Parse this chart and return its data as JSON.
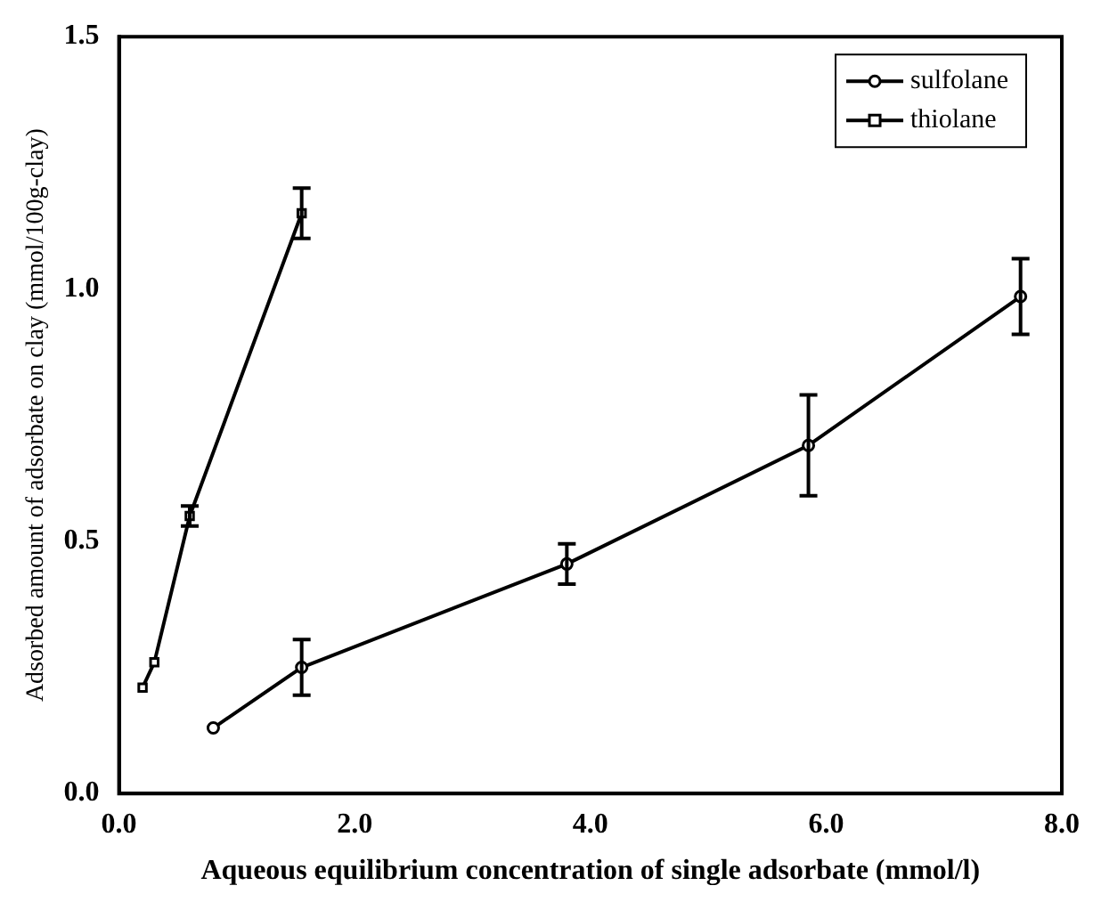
{
  "chart_data": {
    "type": "line",
    "xlabel": "Aqueous equilibrium concentration of single adsorbate (mmol/l)",
    "ylabel": "Adsorbed amount of adsorbate on clay (mmol/100g-clay)",
    "xlim": [
      0,
      8
    ],
    "xticks": [
      {
        "value": 0,
        "label": "0.0"
      },
      {
        "value": 2,
        "label": "2.0"
      },
      {
        "value": 4,
        "label": "4.0"
      },
      {
        "value": 6,
        "label": "6.0"
      },
      {
        "value": 8,
        "label": "8.0"
      }
    ],
    "ylim": [
      0,
      1.5
    ],
    "yticks": [
      {
        "value": 0,
        "label": "0.0"
      },
      {
        "value": 0.5,
        "label": "0.5"
      },
      {
        "value": 1,
        "label": "1.0"
      },
      {
        "value": 1.5,
        "label": "1.5"
      }
    ],
    "grid": false,
    "legend": "top right",
    "line_style": "solid",
    "series": [
      {
        "name": "sulfolane",
        "color": "#000000",
        "marker": "circle",
        "x": [
          0.8,
          1.55,
          3.8,
          5.85,
          7.65
        ],
        "values": [
          0.13,
          0.25,
          0.455,
          0.69,
          0.985
        ],
        "errors": [
          null,
          0.055,
          0.04,
          0.1,
          0.075
        ]
      },
      {
        "name": "thiolane",
        "color": "#000000",
        "marker": "square",
        "x": [
          0.2,
          0.3,
          0.6,
          1.55
        ],
        "values": [
          0.21,
          0.26,
          0.55,
          1.15
        ],
        "errors": [
          null,
          null,
          0.02,
          0.05
        ]
      }
    ]
  }
}
